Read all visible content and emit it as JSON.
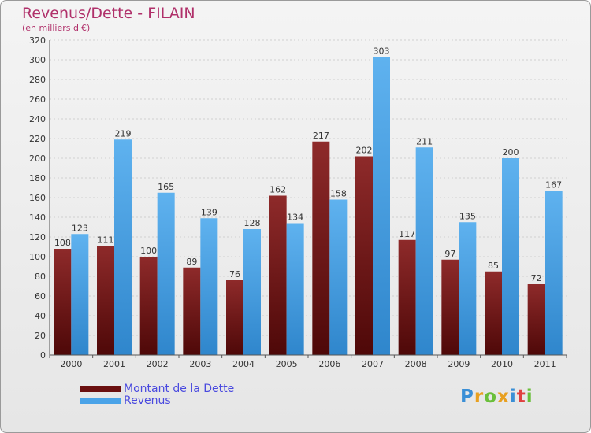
{
  "header": {
    "title": "Revenus/Dette - FILAIN",
    "subtitle": "(en milliers d'€)"
  },
  "legend": {
    "items": [
      {
        "label": "Montant de la Dette",
        "color": "#7a1414"
      },
      {
        "label": "Revenus",
        "color": "#4aa3e8"
      }
    ]
  },
  "logo": {
    "text": "Proxiti",
    "letters": [
      {
        "ch": "P",
        "color": "#3a8fd6"
      },
      {
        "ch": "r",
        "color": "#e8a020"
      },
      {
        "ch": "o",
        "color": "#6abf3a"
      },
      {
        "ch": "x",
        "color": "#e8a020"
      },
      {
        "ch": "i",
        "color": "#3a8fd6"
      },
      {
        "ch": "t",
        "color": "#e04040"
      },
      {
        "ch": "i",
        "color": "#6abf3a"
      }
    ]
  },
  "chart_data": {
    "type": "bar",
    "title": "Revenus/Dette - FILAIN",
    "subtitle": "(en milliers d'€)",
    "categories": [
      "2000",
      "2001",
      "2002",
      "2003",
      "2004",
      "2005",
      "2006",
      "2007",
      "2008",
      "2009",
      "2010",
      "2011"
    ],
    "series": [
      {
        "name": "Montant de la Dette",
        "color": "#7a1414",
        "values": [
          108,
          111,
          100,
          89,
          76,
          162,
          217,
          202,
          117,
          97,
          85,
          72
        ]
      },
      {
        "name": "Revenus",
        "color": "#4aa3e8",
        "values": [
          123,
          219,
          165,
          139,
          128,
          134,
          158,
          303,
          211,
          135,
          200,
          167
        ]
      }
    ],
    "ylim": [
      0,
      320
    ],
    "yticks": [
      0,
      20,
      40,
      60,
      80,
      100,
      120,
      140,
      160,
      180,
      200,
      220,
      240,
      260,
      280,
      300,
      320
    ],
    "grid": true,
    "legend_position": "bottom-left"
  }
}
